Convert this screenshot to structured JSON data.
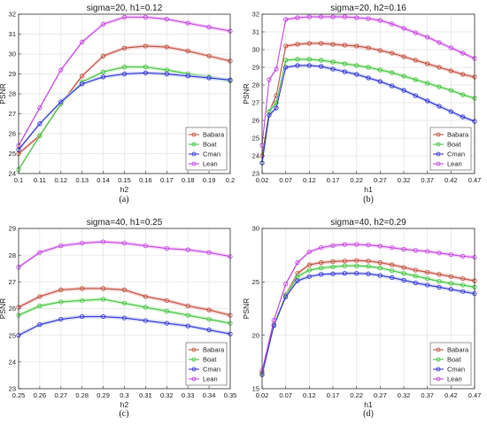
{
  "colors": {
    "Babara": "#b94a35",
    "Boat": "#3bbf3b",
    "Cman": "#2a2ad0",
    "Lean": "#c040e0",
    "band_Babara": "#f2c3c3",
    "band_Boat": "#c8f0c0",
    "band_Cman": "#c4cff5",
    "band_Lean": "#f2c6f5",
    "grid": "#e3e3e3",
    "axis": "#333333"
  },
  "captions": [
    "(a)",
    "(b)",
    "(c)",
    "(d)"
  ],
  "chart_data": [
    {
      "type": "line",
      "title": "sigma=20, h1=0.12",
      "xlabel": "h2",
      "ylabel": "PSNR",
      "xlim": [
        0.1,
        0.2
      ],
      "ylim": [
        24,
        32
      ],
      "xticks": [
        "0.1",
        "0.11",
        "0.12",
        "0.13",
        "0.14",
        "0.15",
        "0.16",
        "0.17",
        "0.18",
        "0.19",
        "0.2"
      ],
      "yticks": [
        "24",
        "25",
        "26",
        "27",
        "28",
        "29",
        "30",
        "31",
        "32"
      ],
      "legend_position": "bottom-right",
      "x": [
        0.1,
        0.11,
        0.12,
        0.13,
        0.14,
        0.15,
        0.16,
        0.17,
        0.18,
        0.19,
        0.2
      ],
      "series": [
        {
          "name": "Babara",
          "values": [
            25.0,
            25.9,
            27.5,
            28.9,
            29.9,
            30.3,
            30.4,
            30.35,
            30.15,
            29.9,
            29.65
          ]
        },
        {
          "name": "Boat",
          "values": [
            24.2,
            25.9,
            27.5,
            28.6,
            29.1,
            29.35,
            29.35,
            29.2,
            29.0,
            28.85,
            28.65
          ]
        },
        {
          "name": "Cman",
          "values": [
            25.2,
            26.5,
            27.6,
            28.5,
            28.85,
            29.0,
            29.05,
            29.0,
            28.9,
            28.8,
            28.7
          ]
        },
        {
          "name": "Lean",
          "values": [
            25.4,
            27.3,
            29.2,
            30.6,
            31.5,
            31.85,
            31.85,
            31.75,
            31.55,
            31.35,
            31.15
          ]
        }
      ]
    },
    {
      "type": "line",
      "title": "sigma=20, h2=0.16",
      "xlabel": "h1",
      "ylabel": "PSNR",
      "xlim": [
        0.02,
        0.47
      ],
      "ylim": [
        23,
        32
      ],
      "xticks": [
        "0.02",
        "0.07",
        "0.12",
        "0.17",
        "0.22",
        "0.27",
        "0.32",
        "0.37",
        "0.42",
        "0.47"
      ],
      "yticks": [
        "23",
        "24",
        "25",
        "26",
        "27",
        "28",
        "29",
        "30",
        "31",
        "32"
      ],
      "legend_position": "bottom-right",
      "x": [
        0.02,
        0.035,
        0.05,
        0.07,
        0.095,
        0.12,
        0.145,
        0.17,
        0.195,
        0.22,
        0.245,
        0.27,
        0.295,
        0.32,
        0.345,
        0.37,
        0.395,
        0.42,
        0.445,
        0.47
      ],
      "series": [
        {
          "name": "Babara",
          "values": [
            24.0,
            26.5,
            27.4,
            30.2,
            30.3,
            30.35,
            30.35,
            30.3,
            30.25,
            30.2,
            30.1,
            29.95,
            29.8,
            29.6,
            29.4,
            29.2,
            29.0,
            28.8,
            28.6,
            28.45
          ]
        },
        {
          "name": "Boat",
          "values": [
            23.6,
            26.5,
            27.0,
            29.4,
            29.45,
            29.45,
            29.4,
            29.3,
            29.2,
            29.1,
            29.0,
            28.85,
            28.7,
            28.5,
            28.3,
            28.1,
            27.9,
            27.7,
            27.45,
            27.25
          ]
        },
        {
          "name": "Cman",
          "values": [
            23.6,
            26.3,
            26.7,
            29.0,
            29.1,
            29.1,
            29.05,
            28.9,
            28.75,
            28.6,
            28.4,
            28.2,
            27.95,
            27.7,
            27.4,
            27.1,
            26.8,
            26.5,
            26.2,
            25.95
          ]
        },
        {
          "name": "Lean",
          "values": [
            24.6,
            28.3,
            28.9,
            31.7,
            31.8,
            31.85,
            31.85,
            31.85,
            31.85,
            31.8,
            31.75,
            31.65,
            31.45,
            31.2,
            30.95,
            30.7,
            30.4,
            30.1,
            29.8,
            29.5
          ]
        }
      ]
    },
    {
      "type": "line",
      "title": "sigma=40, h1=0.25",
      "xlabel": "h2",
      "ylabel": "PSNR",
      "xlim": [
        0.25,
        0.35
      ],
      "ylim": [
        23,
        29
      ],
      "xticks": [
        "0.25",
        "0.26",
        "0.27",
        "0.28",
        "0.29",
        "0.3",
        "0.31",
        "0.32",
        "0.33",
        "0.34",
        "0.35"
      ],
      "yticks": [
        "23",
        "24",
        "25",
        "26",
        "27",
        "28",
        "29"
      ],
      "legend_position": "bottom-right",
      "x": [
        0.25,
        0.26,
        0.27,
        0.28,
        0.29,
        0.3,
        0.31,
        0.32,
        0.33,
        0.34,
        0.35
      ],
      "series": [
        {
          "name": "Babara",
          "values": [
            26.05,
            26.45,
            26.7,
            26.75,
            26.75,
            26.7,
            26.45,
            26.3,
            26.1,
            25.95,
            25.75
          ]
        },
        {
          "name": "Boat",
          "values": [
            25.75,
            26.1,
            26.25,
            26.3,
            26.35,
            26.2,
            26.05,
            25.9,
            25.75,
            25.6,
            25.45
          ]
        },
        {
          "name": "Cman",
          "values": [
            25.0,
            25.4,
            25.6,
            25.7,
            25.7,
            25.65,
            25.55,
            25.45,
            25.35,
            25.2,
            25.05
          ]
        },
        {
          "name": "Lean",
          "values": [
            27.55,
            28.1,
            28.35,
            28.45,
            28.5,
            28.45,
            28.35,
            28.25,
            28.2,
            28.1,
            27.95
          ]
        }
      ]
    },
    {
      "type": "line",
      "title": "sigma=40, h2=0.29",
      "xlabel": "h1",
      "ylabel": "PSNR",
      "xlim": [
        0.02,
        0.47
      ],
      "ylim": [
        15,
        30
      ],
      "xticks": [
        "0.02",
        "0.07",
        "0.12",
        "0.17",
        "0.22",
        "0.27",
        "0.32",
        "0.37",
        "0.42",
        "0.47"
      ],
      "yticks": [
        "15",
        "20",
        "25",
        "30"
      ],
      "legend_position": "bottom-right",
      "x": [
        0.02,
        0.045,
        0.07,
        0.095,
        0.12,
        0.145,
        0.17,
        0.195,
        0.22,
        0.245,
        0.27,
        0.295,
        0.32,
        0.345,
        0.37,
        0.395,
        0.42,
        0.445,
        0.47
      ],
      "series": [
        {
          "name": "Babara",
          "values": [
            16.5,
            21.0,
            23.8,
            25.8,
            26.6,
            26.8,
            26.9,
            26.95,
            27.0,
            26.95,
            26.8,
            26.6,
            26.35,
            26.1,
            25.9,
            25.7,
            25.5,
            25.3,
            25.1
          ]
        },
        {
          "name": "Boat",
          "values": [
            16.4,
            21.0,
            23.7,
            25.5,
            26.1,
            26.3,
            26.4,
            26.5,
            26.5,
            26.45,
            26.3,
            26.05,
            25.8,
            25.55,
            25.3,
            25.05,
            24.85,
            24.7,
            24.5
          ]
        },
        {
          "name": "Cman",
          "values": [
            16.3,
            20.9,
            23.6,
            25.1,
            25.5,
            25.7,
            25.75,
            25.8,
            25.8,
            25.75,
            25.6,
            25.4,
            25.15,
            24.9,
            24.7,
            24.5,
            24.3,
            24.1,
            23.9
          ]
        },
        {
          "name": "Lean",
          "values": [
            16.7,
            21.4,
            24.8,
            26.8,
            27.8,
            28.2,
            28.4,
            28.5,
            28.5,
            28.45,
            28.35,
            28.2,
            28.05,
            27.95,
            27.85,
            27.7,
            27.55,
            27.4,
            27.3
          ]
        }
      ]
    }
  ]
}
